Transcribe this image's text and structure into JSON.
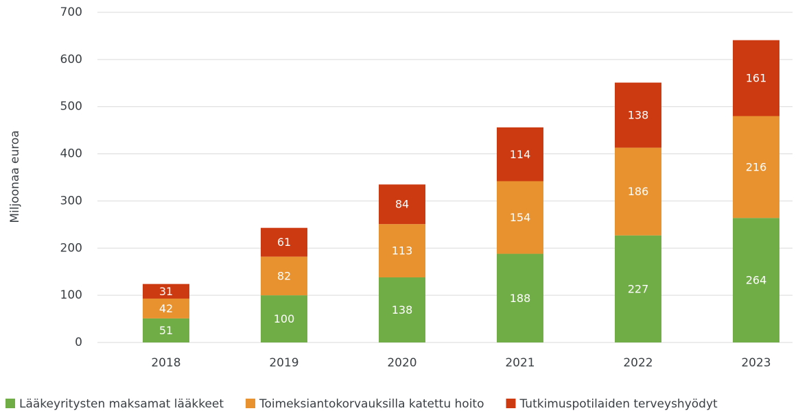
{
  "chart_data": {
    "type": "stacked_bar",
    "y_label": "Miljoonaa euroa",
    "categories": [
      "2018",
      "2019",
      "2020",
      "2021",
      "2022",
      "2023"
    ],
    "series": [
      {
        "name": "Lääkeyritysten maksamat lääkkeet",
        "color": "#70ad47",
        "values": [
          51,
          100,
          138,
          188,
          227,
          264
        ]
      },
      {
        "name": "Toimeksiantokorvauksilla katettu hoito",
        "color": "#e8912f",
        "values": [
          42,
          82,
          113,
          154,
          186,
          216
        ]
      },
      {
        "name": "Tutkimuspotilaiden terveyshyödyt",
        "color": "#cc3a12",
        "values": [
          31,
          61,
          84,
          114,
          138,
          161
        ]
      }
    ],
    "ylim": [
      0,
      700
    ],
    "yticks": [
      0,
      100,
      200,
      300,
      400,
      500,
      600,
      700
    ],
    "grid": true,
    "legend": "bottom"
  }
}
